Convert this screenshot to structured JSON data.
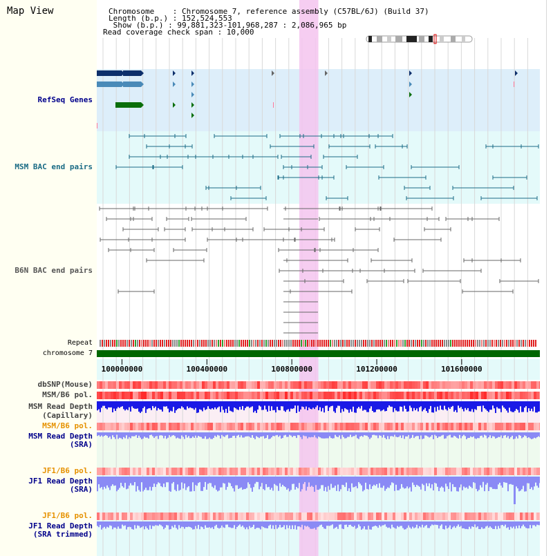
{
  "title": "Map View",
  "info": {
    "line1": "Chromosome    : Chromosome 7, reference assembly (C57BL/6J) (Build 37)",
    "line2": "Length (b.p.) : 152,524,553",
    "line3": " Show (b.p.) : 99,881,323-101,968,287 : 2,086,965 bp",
    "line4": "Read coverage check span : 10,000"
  },
  "track_labels": {
    "refseq": "RefSeq Genes",
    "msm_bac": "MSM BAC end pairs",
    "b6n_bac": "B6N BAC end pairs",
    "repeat": "Repeat",
    "chromosome": "chromosome 7",
    "dbsnp": "dbSNP(Mouse)",
    "msm_b6_pol_1": "MSM/B6 pol.",
    "msm_depth_cap_1": "MSM Read Depth",
    "msm_depth_cap_2": "(Capillary)",
    "msm_b6_pol_2": "MSM/B6 pol.",
    "msm_depth_sra_1": "MSM Read Depth",
    "msm_depth_sra_2": "(SRA)",
    "jf1_b6_pol_1": "JF1/B6 pol.",
    "jf1_depth_sra_1": "JF1 Read Depth",
    "jf1_depth_sra_2": "(SRA)",
    "jf1_b6_pol_2": "JF1/B6 pol.",
    "jf1_depth_trim_1": "JF1 Read Depth",
    "jf1_depth_trim_2": "(SRA trimmed)"
  },
  "axis": {
    "ticks": [
      "100000000",
      "100400000",
      "100800000",
      "101200000",
      "101600000"
    ],
    "range": [
      99881323,
      101968287
    ]
  },
  "highlight_range_bp": [
    100835000,
    100925000
  ],
  "colors": {
    "refseq_dark": "#0d2f6b",
    "refseq_mid": "#4a8ab8",
    "refseq_green": "#0a6e0a",
    "msm_bac": "#1a6b85",
    "b6n_bac": "#666666",
    "chromosome_bar": "#006600",
    "highlight": "#f5c4ef",
    "label_blue": "#00008b",
    "label_msm": "#1a6b85",
    "label_orange": "#e69100",
    "label_gray": "#444444",
    "depth_blue": "#1a1ae6",
    "depth_violet": "#8a8af5"
  }
}
